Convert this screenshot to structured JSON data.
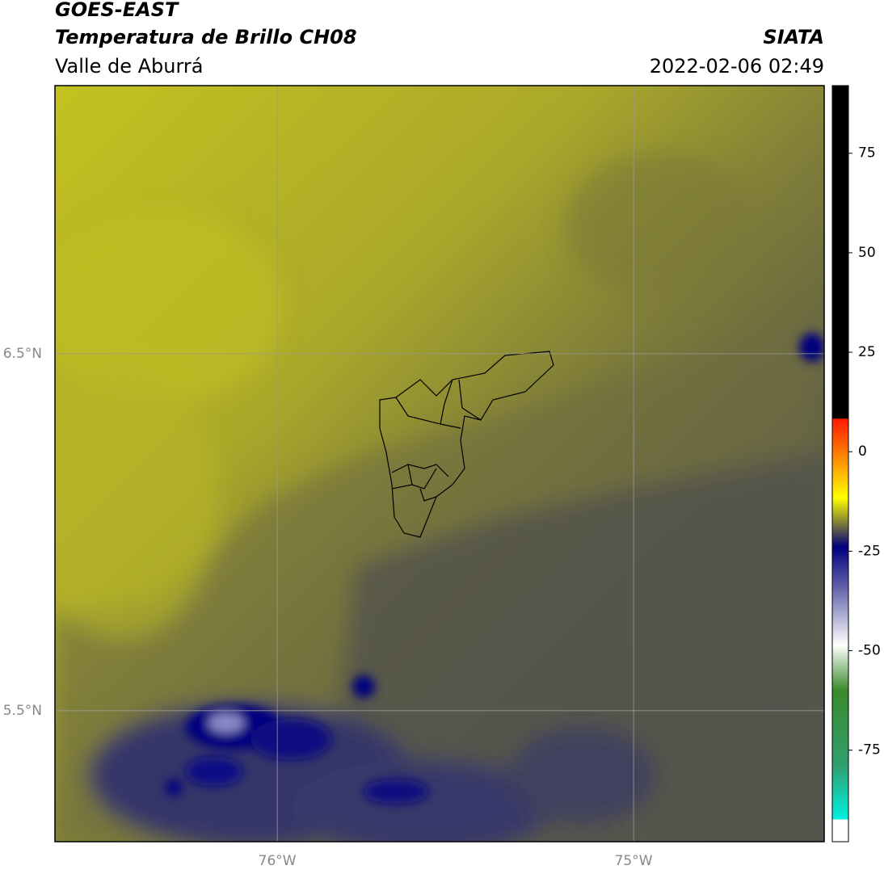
{
  "header": {
    "title": "GOES-EAST",
    "subtitle": "Temperatura de Brillo CH08",
    "region": "Valle de Aburrá",
    "agency": "SIATA",
    "datetime": "2022-02-06 02:49"
  },
  "map": {
    "lon_range": [
      -76.624,
      -74.465
    ],
    "lat_range": [
      5.133,
      7.251
    ],
    "lon_ticks": [
      {
        "value": -76,
        "label": "76°W"
      },
      {
        "value": -75,
        "label": "75°W"
      }
    ],
    "lat_ticks": [
      {
        "value": 6.5,
        "label": "6.5°N"
      },
      {
        "value": 5.5,
        "label": "5.5°N"
      }
    ],
    "colorbar": {
      "range": [
        -98,
        92
      ],
      "ticks": [
        75,
        50,
        25,
        0,
        -25,
        -50,
        -75
      ]
    }
  }
}
